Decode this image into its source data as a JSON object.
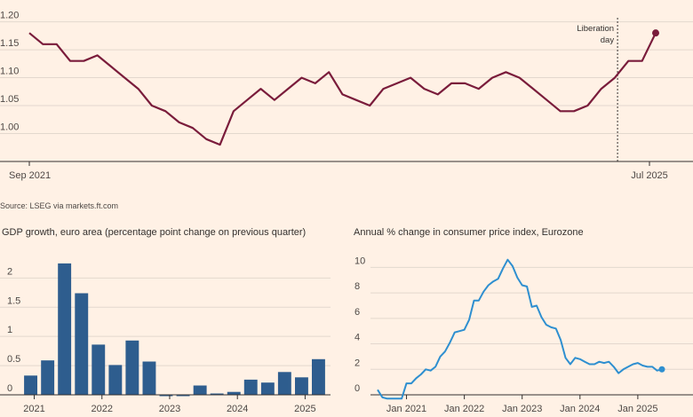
{
  "source": "Source: LSEG via markets.ft.com",
  "chart_data": [
    {
      "type": "line",
      "title": "",
      "annotation": "Liberation day",
      "annotation_lines": [
        "Liberation",
        "day"
      ],
      "x_start": "Sep 2021",
      "x_end": "Jul 2025",
      "x_tick_labels": [
        "Sep 2021",
        "Jul 2025"
      ],
      "ylim": [
        0.95,
        1.22
      ],
      "y_ticks": [
        1.0,
        1.05,
        1.1,
        1.15,
        1.2
      ],
      "y_tick_labels": [
        "1.00",
        "1.05",
        "1.10",
        "1.15",
        "1.20"
      ],
      "color": "#7a1c3b",
      "x": [
        0,
        1,
        2,
        3,
        4,
        5,
        6,
        7,
        8,
        9,
        10,
        11,
        12,
        13,
        14,
        15,
        16,
        17,
        18,
        19,
        20,
        21,
        22,
        23,
        24,
        25,
        26,
        27,
        28,
        29,
        30,
        31,
        32,
        33,
        34,
        35,
        36,
        37,
        38,
        39,
        40,
        41,
        42,
        43,
        44,
        45,
        46
      ],
      "values": [
        1.18,
        1.16,
        1.16,
        1.13,
        1.13,
        1.14,
        1.12,
        1.1,
        1.08,
        1.05,
        1.04,
        1.02,
        1.01,
        0.99,
        0.98,
        1.04,
        1.06,
        1.08,
        1.06,
        1.08,
        1.1,
        1.09,
        1.11,
        1.07,
        1.06,
        1.05,
        1.08,
        1.09,
        1.1,
        1.08,
        1.07,
        1.09,
        1.09,
        1.08,
        1.1,
        1.11,
        1.1,
        1.08,
        1.06,
        1.04,
        1.04,
        1.05,
        1.08,
        1.1,
        1.13,
        1.13,
        1.18
      ],
      "annotation_x": 43.2
    },
    {
      "type": "bar",
      "title": "GDP growth, euro area (percentage point change on previous quarter)",
      "x_tick_labels": [
        "2021",
        "2022",
        "2023",
        "2024",
        "2025"
      ],
      "ylim": [
        0,
        2.4
      ],
      "y_ticks": [
        0,
        0.5,
        1,
        1.5,
        2
      ],
      "y_tick_labels": [
        "0",
        "0.5",
        "1",
        "1.5",
        "2"
      ],
      "color": "#2e5d8e",
      "values": [
        0.33,
        0.59,
        2.25,
        1.74,
        0.86,
        0.51,
        0.93,
        0.57,
        -0.01,
        -0.02,
        0.16,
        0.02,
        0.05,
        0.26,
        0.21,
        0.39,
        0.3,
        0.61
      ]
    },
    {
      "type": "line",
      "title": "Annual % change in consumer price index, Eurozone",
      "x_tick_labels": [
        "Jan 2021",
        "Jan 2022",
        "Jan 2023",
        "Jan 2024",
        "Jan 2025"
      ],
      "ylim": [
        0,
        11
      ],
      "y_ticks": [
        0,
        2,
        4,
        6,
        8,
        10
      ],
      "y_tick_labels": [
        "0",
        "2",
        "4",
        "6",
        "8",
        "10"
      ],
      "color": "#2e8fd0",
      "months_start": "Jul 2020",
      "values": [
        0.4,
        -0.2,
        -0.3,
        -0.3,
        -0.3,
        -0.3,
        0.9,
        0.9,
        1.3,
        1.6,
        2.0,
        1.9,
        2.2,
        3.0,
        3.4,
        4.1,
        4.9,
        5.0,
        5.1,
        5.9,
        7.4,
        7.4,
        8.1,
        8.6,
        8.9,
        9.1,
        9.9,
        10.6,
        10.1,
        9.2,
        8.6,
        8.5,
        6.9,
        7.0,
        6.1,
        5.5,
        5.3,
        5.2,
        4.3,
        2.9,
        2.4,
        2.9,
        2.8,
        2.6,
        2.4,
        2.4,
        2.6,
        2.5,
        2.6,
        2.2,
        1.7,
        2.0,
        2.2,
        2.4,
        2.5,
        2.3,
        2.2,
        2.2,
        1.9,
        2.0
      ]
    }
  ]
}
